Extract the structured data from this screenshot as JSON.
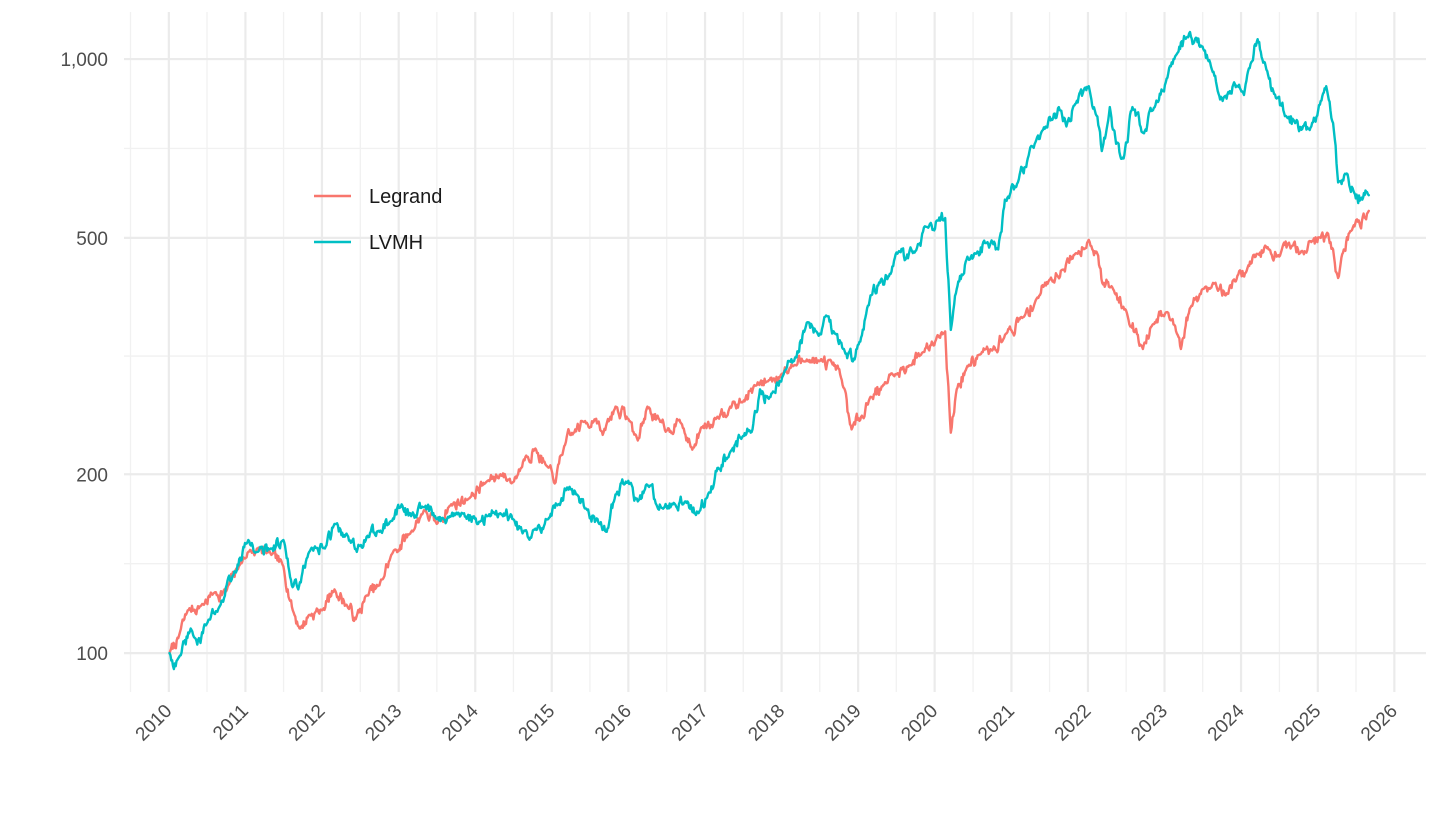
{
  "chart_data": {
    "type": "line",
    "title": "",
    "xlabel": "",
    "ylabel": "",
    "y_scale": "log",
    "ylim": [
      86,
      1200
    ],
    "xlim": [
      "2009-06-01",
      "2026-06-01"
    ],
    "grid": true,
    "y_ticks": [
      100,
      200,
      500,
      1000
    ],
    "y_tick_labels": [
      "100",
      "200",
      "500",
      "1,000"
    ],
    "x_ticks": [
      "2010-01-01",
      "2011-01-01",
      "2012-01-01",
      "2013-01-01",
      "2014-01-01",
      "2015-01-01",
      "2016-01-01",
      "2017-01-01",
      "2018-01-01",
      "2019-01-01",
      "2020-01-01",
      "2021-01-01",
      "2022-01-01",
      "2023-01-01",
      "2024-01-01",
      "2025-01-01",
      "2026-01-01"
    ],
    "x_tick_labels": [
      "2010",
      "2011",
      "2012",
      "2013",
      "2014",
      "2015",
      "2016",
      "2017",
      "2018",
      "2019",
      "2020",
      "2021",
      "2022",
      "2023",
      "2024",
      "2025",
      "2026"
    ],
    "legend": {
      "position": "top-left"
    },
    "series": [
      {
        "name": "Legrand",
        "color": "#F8766D",
        "points": [
          [
            "2010-01-04",
            100
          ],
          [
            "2010-02-15",
            106
          ],
          [
            "2010-04-01",
            118
          ],
          [
            "2010-06-01",
            120
          ],
          [
            "2010-08-01",
            126
          ],
          [
            "2010-10-01",
            127
          ],
          [
            "2010-12-01",
            140
          ],
          [
            "2011-01-15",
            148
          ],
          [
            "2011-03-01",
            150
          ],
          [
            "2011-05-01",
            147
          ],
          [
            "2011-07-01",
            140
          ],
          [
            "2011-08-15",
            118
          ],
          [
            "2011-09-20",
            110
          ],
          [
            "2011-11-01",
            116
          ],
          [
            "2012-01-01",
            118
          ],
          [
            "2012-03-01",
            128
          ],
          [
            "2012-05-01",
            120
          ],
          [
            "2012-06-10",
            114
          ],
          [
            "2012-08-01",
            125
          ],
          [
            "2012-10-01",
            130
          ],
          [
            "2012-12-01",
            147
          ],
          [
            "2013-03-01",
            160
          ],
          [
            "2013-05-01",
            174
          ],
          [
            "2013-07-01",
            165
          ],
          [
            "2013-09-01",
            177
          ],
          [
            "2013-12-01",
            182
          ],
          [
            "2014-03-01",
            195
          ],
          [
            "2014-05-01",
            200
          ],
          [
            "2014-07-01",
            194
          ],
          [
            "2014-09-01",
            215
          ],
          [
            "2014-10-15",
            221
          ],
          [
            "2014-12-01",
            208
          ],
          [
            "2015-01-15",
            193
          ],
          [
            "2015-03-01",
            223
          ],
          [
            "2015-04-15",
            235
          ],
          [
            "2015-06-01",
            245
          ],
          [
            "2015-08-01",
            248
          ],
          [
            "2015-09-01",
            233
          ],
          [
            "2015-11-01",
            260
          ],
          [
            "2016-01-01",
            248
          ],
          [
            "2016-02-15",
            228
          ],
          [
            "2016-04-01",
            260
          ],
          [
            "2016-06-01",
            245
          ],
          [
            "2016-07-01",
            237
          ],
          [
            "2016-09-01",
            247
          ],
          [
            "2016-11-01",
            220
          ],
          [
            "2016-12-15",
            240
          ],
          [
            "2017-03-01",
            250
          ],
          [
            "2017-05-01",
            260
          ],
          [
            "2017-07-01",
            265
          ],
          [
            "2017-09-01",
            282
          ],
          [
            "2017-11-01",
            288
          ],
          [
            "2018-01-01",
            295
          ],
          [
            "2018-03-01",
            305
          ],
          [
            "2018-05-01",
            312
          ],
          [
            "2018-07-01",
            310
          ],
          [
            "2018-09-01",
            306
          ],
          [
            "2018-10-15",
            288
          ],
          [
            "2018-12-01",
            238
          ],
          [
            "2019-01-15",
            250
          ],
          [
            "2019-03-01",
            270
          ],
          [
            "2019-05-01",
            283
          ],
          [
            "2019-07-01",
            295
          ],
          [
            "2019-09-01",
            305
          ],
          [
            "2019-11-01",
            320
          ],
          [
            "2020-01-15",
            343
          ],
          [
            "2020-02-20",
            348
          ],
          [
            "2020-03-18",
            235
          ],
          [
            "2020-04-15",
            278
          ],
          [
            "2020-06-01",
            302
          ],
          [
            "2020-08-01",
            318
          ],
          [
            "2020-10-01",
            323
          ],
          [
            "2020-12-01",
            343
          ],
          [
            "2021-03-01",
            368
          ],
          [
            "2021-05-01",
            395
          ],
          [
            "2021-07-01",
            425
          ],
          [
            "2021-09-01",
            442
          ],
          [
            "2021-11-01",
            470
          ],
          [
            "2022-01-05",
            496
          ],
          [
            "2022-02-15",
            470
          ],
          [
            "2022-03-10",
            420
          ],
          [
            "2022-05-01",
            410
          ],
          [
            "2022-07-01",
            378
          ],
          [
            "2022-09-20",
            325
          ],
          [
            "2022-11-01",
            355
          ],
          [
            "2023-01-15",
            375
          ],
          [
            "2023-03-01",
            345
          ],
          [
            "2023-03-20",
            325
          ],
          [
            "2023-05-01",
            380
          ],
          [
            "2023-07-01",
            410
          ],
          [
            "2023-09-01",
            420
          ],
          [
            "2023-10-20",
            400
          ],
          [
            "2023-12-15",
            432
          ],
          [
            "2024-02-01",
            445
          ],
          [
            "2024-03-15",
            470
          ],
          [
            "2024-05-15",
            478
          ],
          [
            "2024-07-01",
            465
          ],
          [
            "2024-09-01",
            485
          ],
          [
            "2024-10-15",
            475
          ],
          [
            "2024-12-01",
            492
          ],
          [
            "2025-01-15",
            500
          ],
          [
            "2025-02-15",
            510
          ],
          [
            "2025-03-15",
            478
          ],
          [
            "2025-04-08",
            428
          ],
          [
            "2025-05-01",
            472
          ],
          [
            "2025-06-01",
            510
          ],
          [
            "2025-07-15",
            535
          ],
          [
            "2025-08-15",
            540
          ],
          [
            "2025-09-01",
            555
          ]
        ]
      },
      {
        "name": "LVMH",
        "color": "#00BFC4",
        "points": [
          [
            "2010-01-04",
            100
          ],
          [
            "2010-01-25",
            94
          ],
          [
            "2010-02-15",
            98
          ],
          [
            "2010-04-15",
            110
          ],
          [
            "2010-06-01",
            104
          ],
          [
            "2010-07-01",
            112
          ],
          [
            "2010-09-01",
            120
          ],
          [
            "2010-11-01",
            135
          ],
          [
            "2011-01-15",
            155
          ],
          [
            "2011-03-01",
            148
          ],
          [
            "2011-05-01",
            150
          ],
          [
            "2011-07-01",
            155
          ],
          [
            "2011-08-10",
            130
          ],
          [
            "2011-09-10",
            128
          ],
          [
            "2011-11-01",
            148
          ],
          [
            "2012-01-15",
            150
          ],
          [
            "2012-03-01",
            165
          ],
          [
            "2012-05-01",
            158
          ],
          [
            "2012-06-15",
            148
          ],
          [
            "2012-08-01",
            157
          ],
          [
            "2012-10-01",
            160
          ],
          [
            "2012-12-01",
            167
          ],
          [
            "2013-01-15",
            178
          ],
          [
            "2013-03-01",
            170
          ],
          [
            "2013-05-01",
            176
          ],
          [
            "2013-07-01",
            168
          ],
          [
            "2013-09-01",
            170
          ],
          [
            "2013-11-01",
            172
          ],
          [
            "2014-01-15",
            165
          ],
          [
            "2014-03-01",
            170
          ],
          [
            "2014-05-01",
            172
          ],
          [
            "2014-07-01",
            168
          ],
          [
            "2014-08-15",
            159
          ],
          [
            "2014-10-15",
            162
          ],
          [
            "2014-12-15",
            168
          ],
          [
            "2015-02-01",
            178
          ],
          [
            "2015-03-15",
            190
          ],
          [
            "2015-05-01",
            185
          ],
          [
            "2015-06-15",
            175
          ],
          [
            "2015-08-15",
            165
          ],
          [
            "2015-09-20",
            160
          ],
          [
            "2015-11-01",
            185
          ],
          [
            "2016-01-01",
            195
          ],
          [
            "2016-02-15",
            180
          ],
          [
            "2016-04-01",
            192
          ],
          [
            "2016-06-15",
            175
          ],
          [
            "2016-08-01",
            178
          ],
          [
            "2016-10-01",
            180
          ],
          [
            "2016-12-01",
            172
          ],
          [
            "2017-01-15",
            185
          ],
          [
            "2017-03-01",
            205
          ],
          [
            "2017-05-01",
            218
          ],
          [
            "2017-07-01",
            232
          ],
          [
            "2017-08-15",
            238
          ],
          [
            "2017-09-20",
            278
          ],
          [
            "2017-11-01",
            268
          ],
          [
            "2018-01-15",
            298
          ],
          [
            "2018-03-01",
            310
          ],
          [
            "2018-05-01",
            360
          ],
          [
            "2018-06-15",
            348
          ],
          [
            "2018-08-01",
            370
          ],
          [
            "2018-09-15",
            345
          ],
          [
            "2018-10-25",
            325
          ],
          [
            "2018-12-15",
            312
          ],
          [
            "2019-01-15",
            340
          ],
          [
            "2019-03-01",
            400
          ],
          [
            "2019-04-15",
            420
          ],
          [
            "2019-06-01",
            435
          ],
          [
            "2019-07-15",
            475
          ],
          [
            "2019-08-15",
            460
          ],
          [
            "2019-10-01",
            475
          ],
          [
            "2019-12-01",
            520
          ],
          [
            "2020-01-15",
            535
          ],
          [
            "2020-02-20",
            540
          ],
          [
            "2020-03-18",
            350
          ],
          [
            "2020-04-15",
            410
          ],
          [
            "2020-06-01",
            460
          ],
          [
            "2020-07-15",
            470
          ],
          [
            "2020-09-01",
            490
          ],
          [
            "2020-10-30",
            478
          ],
          [
            "2020-12-01",
            580
          ],
          [
            "2021-02-01",
            620
          ],
          [
            "2021-04-01",
            710
          ],
          [
            "2021-06-01",
            760
          ],
          [
            "2021-07-15",
            790
          ],
          [
            "2021-08-15",
            830
          ],
          [
            "2021-09-20",
            770
          ],
          [
            "2021-11-01",
            840
          ],
          [
            "2022-01-05",
            900
          ],
          [
            "2022-02-15",
            800
          ],
          [
            "2022-03-08",
            700
          ],
          [
            "2022-04-15",
            830
          ],
          [
            "2022-05-15",
            720
          ],
          [
            "2022-06-20",
            680
          ],
          [
            "2022-08-01",
            830
          ],
          [
            "2022-09-25",
            750
          ],
          [
            "2022-11-15",
            830
          ],
          [
            "2023-01-15",
            930
          ],
          [
            "2023-03-01",
            1020
          ],
          [
            "2023-04-20",
            1090
          ],
          [
            "2023-05-15",
            1060
          ],
          [
            "2023-07-01",
            1050
          ],
          [
            "2023-08-15",
            960
          ],
          [
            "2023-10-05",
            850
          ],
          [
            "2023-11-01",
            880
          ],
          [
            "2023-12-15",
            900
          ],
          [
            "2024-01-15",
            870
          ],
          [
            "2024-02-15",
            980
          ],
          [
            "2024-03-20",
            1080
          ],
          [
            "2024-05-01",
            960
          ],
          [
            "2024-06-15",
            860
          ],
          [
            "2024-08-05",
            800
          ],
          [
            "2024-09-15",
            780
          ],
          [
            "2024-10-15",
            760
          ],
          [
            "2024-12-01",
            770
          ],
          [
            "2025-01-15",
            850
          ],
          [
            "2025-02-10",
            900
          ],
          [
            "2025-03-15",
            780
          ],
          [
            "2025-04-08",
            620
          ],
          [
            "2025-05-15",
            640
          ],
          [
            "2025-06-20",
            600
          ],
          [
            "2025-08-01",
            580
          ],
          [
            "2025-09-01",
            590
          ]
        ]
      }
    ]
  }
}
